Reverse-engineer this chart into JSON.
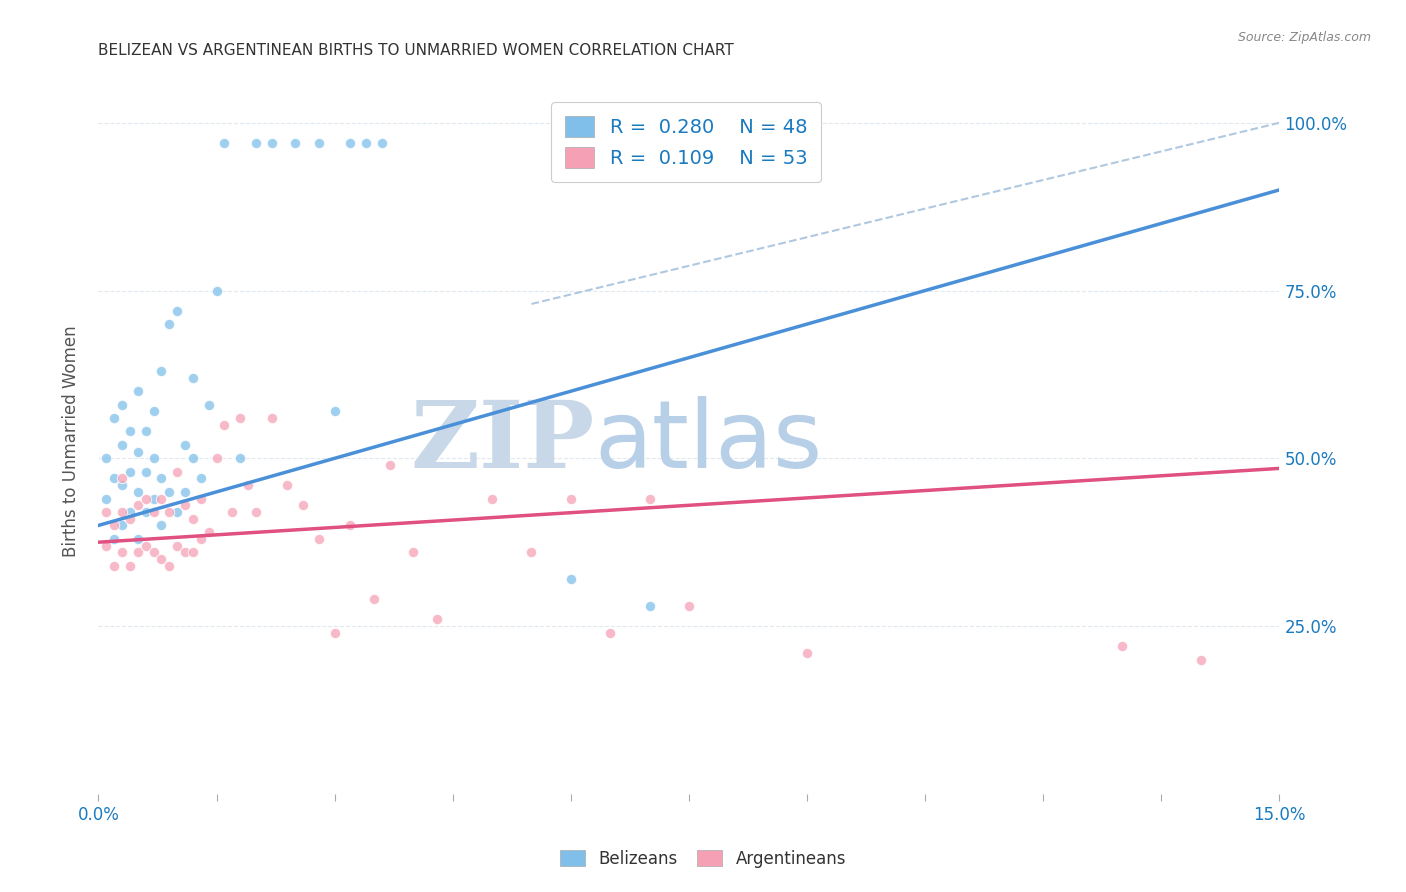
{
  "title": "BELIZEAN VS ARGENTINEAN BIRTHS TO UNMARRIED WOMEN CORRELATION CHART",
  "source": "Source: ZipAtlas.com",
  "ylabel": "Births to Unmarried Women",
  "yticks": [
    0.0,
    0.25,
    0.5,
    0.75,
    1.0
  ],
  "ytick_labels": [
    "",
    "25.0%",
    "50.0%",
    "75.0%",
    "100.0%"
  ],
  "xmin": 0.0,
  "xmax": 0.15,
  "ymin": 0.0,
  "ymax": 1.05,
  "blue_R": 0.28,
  "blue_N": 48,
  "pink_R": 0.109,
  "pink_N": 53,
  "blue_color": "#7fbfea",
  "pink_color": "#f5a0b5",
  "blue_line_color": "#4a90d9",
  "pink_line_color": "#e05080",
  "ref_line_color": "#b0c8e0",
  "scatter_alpha": 0.75,
  "scatter_size": 55,
  "blue_line_y0": 0.4,
  "blue_line_y1": 0.9,
  "pink_line_y0": 0.375,
  "pink_line_y1": 0.485,
  "ref_line_x0": 0.055,
  "ref_line_y0": 0.73,
  "ref_line_x1": 0.15,
  "ref_line_y1": 1.0,
  "blue_scatter_x": [
    0.001,
    0.001,
    0.002,
    0.002,
    0.002,
    0.003,
    0.003,
    0.003,
    0.003,
    0.004,
    0.004,
    0.004,
    0.005,
    0.005,
    0.005,
    0.005,
    0.006,
    0.006,
    0.006,
    0.007,
    0.007,
    0.007,
    0.008,
    0.008,
    0.008,
    0.009,
    0.009,
    0.01,
    0.01,
    0.011,
    0.011,
    0.012,
    0.012,
    0.013,
    0.014,
    0.015,
    0.016,
    0.018,
    0.02,
    0.022,
    0.025,
    0.028,
    0.03,
    0.032,
    0.034,
    0.036,
    0.06,
    0.07
  ],
  "blue_scatter_y": [
    0.44,
    0.5,
    0.38,
    0.47,
    0.56,
    0.4,
    0.46,
    0.52,
    0.58,
    0.42,
    0.48,
    0.54,
    0.38,
    0.45,
    0.51,
    0.6,
    0.42,
    0.48,
    0.54,
    0.44,
    0.5,
    0.57,
    0.4,
    0.47,
    0.63,
    0.45,
    0.7,
    0.42,
    0.72,
    0.45,
    0.52,
    0.62,
    0.5,
    0.47,
    0.58,
    0.75,
    0.97,
    0.5,
    0.97,
    0.97,
    0.97,
    0.97,
    0.57,
    0.97,
    0.97,
    0.97,
    0.32,
    0.28
  ],
  "pink_scatter_x": [
    0.001,
    0.001,
    0.002,
    0.002,
    0.003,
    0.003,
    0.003,
    0.004,
    0.004,
    0.005,
    0.005,
    0.006,
    0.006,
    0.007,
    0.007,
    0.008,
    0.008,
    0.009,
    0.009,
    0.01,
    0.01,
    0.011,
    0.011,
    0.012,
    0.012,
    0.013,
    0.013,
    0.014,
    0.015,
    0.016,
    0.017,
    0.018,
    0.019,
    0.02,
    0.022,
    0.024,
    0.026,
    0.028,
    0.03,
    0.032,
    0.035,
    0.037,
    0.04,
    0.043,
    0.05,
    0.055,
    0.06,
    0.065,
    0.07,
    0.075,
    0.09,
    0.13,
    0.14
  ],
  "pink_scatter_y": [
    0.37,
    0.42,
    0.34,
    0.4,
    0.36,
    0.42,
    0.47,
    0.34,
    0.41,
    0.36,
    0.43,
    0.37,
    0.44,
    0.36,
    0.42,
    0.35,
    0.44,
    0.34,
    0.42,
    0.37,
    0.48,
    0.36,
    0.43,
    0.36,
    0.41,
    0.38,
    0.44,
    0.39,
    0.5,
    0.55,
    0.42,
    0.56,
    0.46,
    0.42,
    0.56,
    0.46,
    0.43,
    0.38,
    0.24,
    0.4,
    0.29,
    0.49,
    0.36,
    0.26,
    0.44,
    0.36,
    0.44,
    0.24,
    0.44,
    0.28,
    0.21,
    0.22,
    0.2
  ],
  "watermark_zip": "ZIP",
  "watermark_atlas": "atlas",
  "watermark_color_zip": "#c8d8e8",
  "watermark_color_atlas": "#b8cfe8",
  "legend_R_color": "#1a7abf",
  "background_color": "#ffffff",
  "grid_color": "#e0e8f0"
}
